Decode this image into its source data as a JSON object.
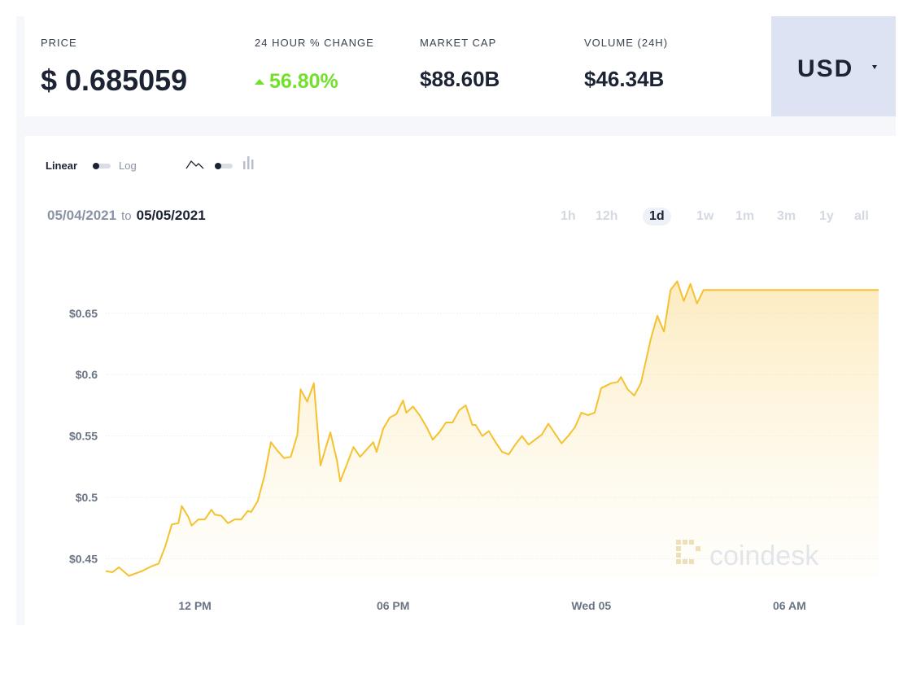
{
  "stats": {
    "price_label": "PRICE",
    "price_value": "$ 0.685059",
    "change_label": "24 HOUR % CHANGE",
    "change_value": "56.80%",
    "mcap_label": "MARKET CAP",
    "mcap_value": "$88.60B",
    "volume_label": "VOLUME (24H)",
    "volume_value": "$46.34B"
  },
  "currency": {
    "label": "USD"
  },
  "controls": {
    "linear_label": "Linear",
    "log_label": "Log",
    "line_icon": "line-chart-icon",
    "bar_icon": "bar-chart-icon"
  },
  "date_range": {
    "from": "05/04/2021",
    "to_word": "to",
    "to": "05/05/2021"
  },
  "ranges": [
    "1h",
    "12h",
    "1d",
    "1w",
    "1m",
    "3m",
    "1y",
    "all"
  ],
  "active_range": "1d",
  "watermark": "coindesk",
  "colors": {
    "line": "#f5c12e",
    "positive": "#72e12a",
    "text_dark": "#1c2434"
  },
  "chart_data": {
    "type": "area",
    "title": "",
    "xlabel": "",
    "ylabel": "",
    "y_tick_labels": [
      "$0.45",
      "$0.5",
      "$0.55",
      "$0.6",
      "$0.65"
    ],
    "y_ticks": [
      0.45,
      0.5,
      0.55,
      0.6,
      0.65
    ],
    "ylim": [
      0.435,
      0.695
    ],
    "x_tick_labels": [
      "12 PM",
      "06 PM",
      "Wed 05",
      "06 AM"
    ],
    "x_ticks_hours": [
      12,
      18,
      24,
      30
    ],
    "xlim_hours": [
      9.3,
      32.7
    ],
    "grid": true,
    "series": [
      {
        "x_hours": [
          9.3,
          9.5,
          9.7,
          10.0,
          10.2,
          10.4,
          10.7,
          10.9,
          11.1,
          11.3,
          11.5,
          11.6,
          11.8,
          11.9,
          12.1,
          12.3,
          12.5,
          12.6,
          12.8,
          13.0,
          13.2,
          13.4,
          13.6,
          13.7,
          13.9,
          14.1,
          14.3,
          14.5,
          14.7,
          14.9,
          15.1,
          15.2,
          15.4,
          15.6,
          15.8,
          16.1,
          16.3,
          16.4,
          16.6,
          16.8,
          17.0,
          17.1,
          17.4,
          17.5,
          17.7,
          17.9,
          18.1,
          18.3,
          18.4,
          18.6,
          18.8,
          19.0,
          19.2,
          19.4,
          19.6,
          19.8,
          20.0,
          20.2,
          20.4,
          20.5,
          20.7,
          20.9,
          21.1,
          21.3,
          21.5,
          21.7,
          21.9,
          22.1,
          22.3,
          22.5,
          22.7,
          23.1,
          23.3,
          23.5,
          23.7,
          23.9,
          24.1,
          24.3,
          24.6,
          24.8,
          24.9,
          25.1,
          25.3,
          25.5,
          25.6,
          25.8,
          26.0,
          26.2,
          26.4,
          26.6,
          26.8,
          27.0,
          27.2,
          27.4,
          27.6,
          27.8,
          28.0,
          28.2,
          28.4,
          28.6,
          28.8,
          29.0,
          29.2,
          29.4,
          29.6,
          29.8,
          30.0,
          30.2,
          30.4,
          30.6,
          30.8,
          31.1,
          31.4,
          31.6,
          31.8,
          32.0,
          32.2,
          32.4,
          32.6,
          32.7
        ],
        "y": [
          0.44,
          0.439,
          0.443,
          0.436,
          0.438,
          0.44,
          0.444,
          0.446,
          0.46,
          0.478,
          0.479,
          0.493,
          0.484,
          0.477,
          0.482,
          0.482,
          0.49,
          0.486,
          0.485,
          0.479,
          0.482,
          0.482,
          0.489,
          0.488,
          0.497,
          0.517,
          0.545,
          0.538,
          0.532,
          0.533,
          0.551,
          0.588,
          0.578,
          0.593,
          0.526,
          0.553,
          0.53,
          0.513,
          0.527,
          0.541,
          0.533,
          0.536,
          0.545,
          0.537,
          0.556,
          0.565,
          0.568,
          0.579,
          0.569,
          0.574,
          0.567,
          0.558,
          0.547,
          0.553,
          0.561,
          0.561,
          0.571,
          0.575,
          0.559,
          0.559,
          0.55,
          0.554,
          0.545,
          0.537,
          0.535,
          0.543,
          0.55,
          0.543,
          0.547,
          0.551,
          0.56,
          0.544,
          0.55,
          0.557,
          0.569,
          0.567,
          0.569,
          0.589,
          0.593,
          0.594,
          0.598,
          0.588,
          0.583,
          0.593,
          0.605,
          0.629,
          0.648,
          0.635,
          0.669,
          0.676,
          0.66,
          0.674,
          0.658,
          0.669,
          0.669,
          0.669,
          0.669,
          0.669,
          0.669,
          0.669,
          0.669,
          0.669,
          0.669,
          0.669,
          0.669,
          0.669,
          0.669,
          0.669,
          0.669,
          0.669,
          0.669,
          0.669,
          0.669,
          0.669,
          0.669,
          0.669,
          0.669,
          0.669,
          0.669,
          0.669
        ]
      }
    ]
  }
}
